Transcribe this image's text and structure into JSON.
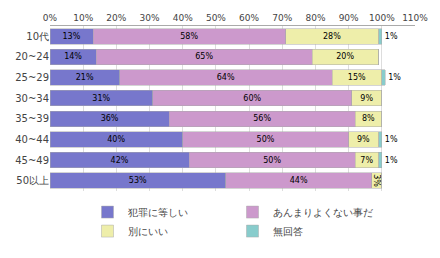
{
  "chart_data": {
    "type": "bar",
    "orientation": "horizontal",
    "stacked": true,
    "data_labels": true,
    "grid": true,
    "legend": "bottom",
    "categories": [
      "10代",
      "20~24",
      "25~29",
      "30~34",
      "35~39",
      "40~44",
      "45~49",
      "50以上"
    ],
    "series": [
      {
        "name": "犯罪に等しい",
        "color": "#7777cc",
        "values": [
          13,
          14,
          21,
          31,
          36,
          40,
          42,
          53
        ],
        "value_labels": [
          "13%",
          "14%",
          "21%",
          "31%",
          "36%",
          "40%",
          "42%",
          "53%"
        ]
      },
      {
        "name": "あんまりよくない事だ",
        "color": "#cc99cc",
        "values": [
          58,
          65,
          64,
          60,
          56,
          50,
          50,
          44
        ],
        "value_labels": [
          "58%",
          "65%",
          "64%",
          "60%",
          "56%",
          "50%",
          "50%",
          "44%"
        ]
      },
      {
        "name": "別にいい",
        "color": "#eeeeaa",
        "values": [
          28,
          20,
          15,
          9,
          8,
          9,
          7,
          3
        ],
        "value_labels": [
          "28%",
          "20%",
          "15%",
          "9%",
          "8%",
          "9%",
          "7%",
          "3%"
        ]
      },
      {
        "name": "無回答",
        "color": "#88cccc",
        "values": [
          1,
          0,
          1,
          0,
          0,
          1,
          1,
          0
        ],
        "value_labels": [
          "1%",
          null,
          "1%",
          null,
          null,
          "1%",
          "1%",
          null
        ]
      }
    ],
    "xlim": [
      0,
      110
    ],
    "xticks": [
      {
        "value": 0,
        "label": "0%"
      },
      {
        "value": 10,
        "label": "10%"
      },
      {
        "value": 20,
        "label": "20%"
      },
      {
        "value": 30,
        "label": "30%"
      },
      {
        "value": 40,
        "label": "40%"
      },
      {
        "value": 50,
        "label": "50%"
      },
      {
        "value": 60,
        "label": "60%"
      },
      {
        "value": 70,
        "label": "70%"
      },
      {
        "value": 80,
        "label": "80%"
      },
      {
        "value": 90,
        "label": "90%"
      },
      {
        "value": 100,
        "label": "100%"
      },
      {
        "value": 110,
        "label": "110%"
      }
    ]
  }
}
